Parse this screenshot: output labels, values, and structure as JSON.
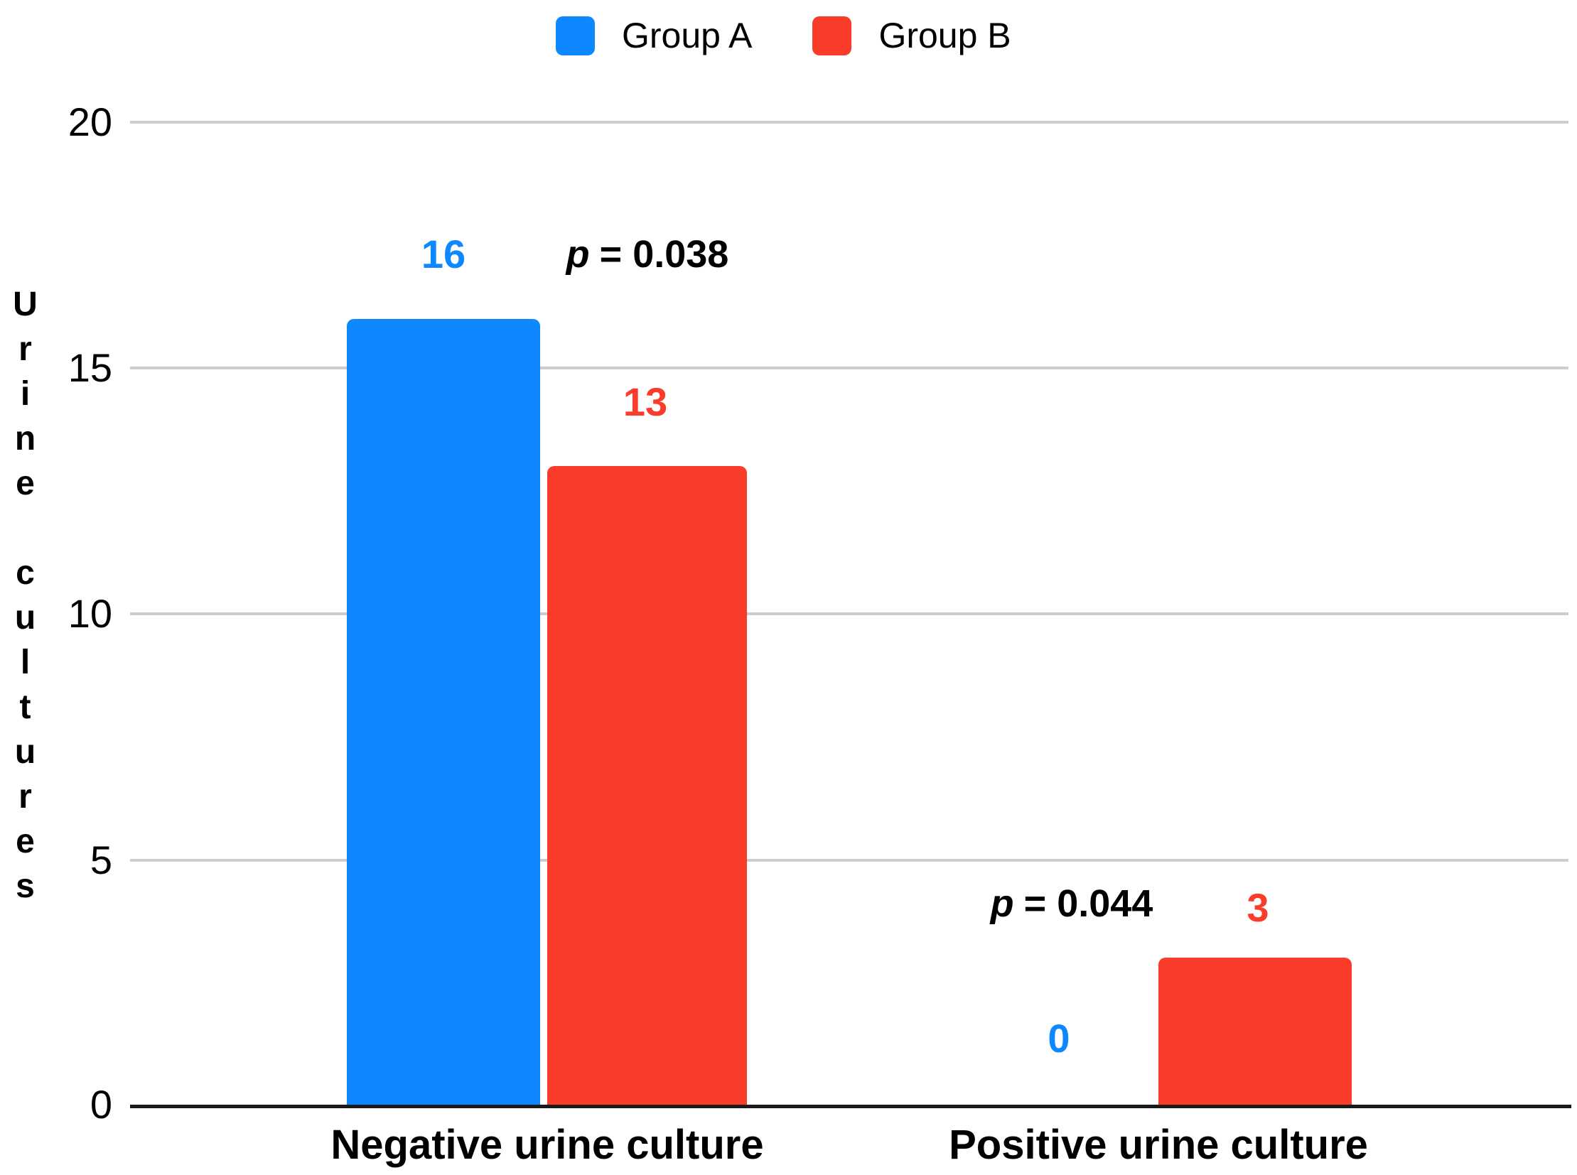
{
  "chart_data": {
    "type": "bar",
    "title": "",
    "xlabel": "",
    "ylabel": "Urine cultures",
    "categories": [
      "Negative urine culture",
      "Positive urine culture"
    ],
    "series": [
      {
        "name": "Group A",
        "color": "#0f87ff",
        "values": [
          16,
          0
        ]
      },
      {
        "name": "Group B",
        "color": "#fa3d2a",
        "values": [
          13,
          3
        ]
      }
    ],
    "annotations": [
      {
        "symbol": "p",
        "text": "= 0.038",
        "category": "Negative urine culture"
      },
      {
        "symbol": "p",
        "text": "= 0.044",
        "category": "Positive urine culture"
      }
    ],
    "yticks": [
      0,
      5,
      10,
      15,
      20
    ],
    "ylim": [
      0,
      20
    ],
    "grid": true,
    "legend_position": "top",
    "colors": {
      "grid": "#cdcdcd",
      "axis": "#1a1a1a",
      "background": "#ffffff"
    }
  }
}
